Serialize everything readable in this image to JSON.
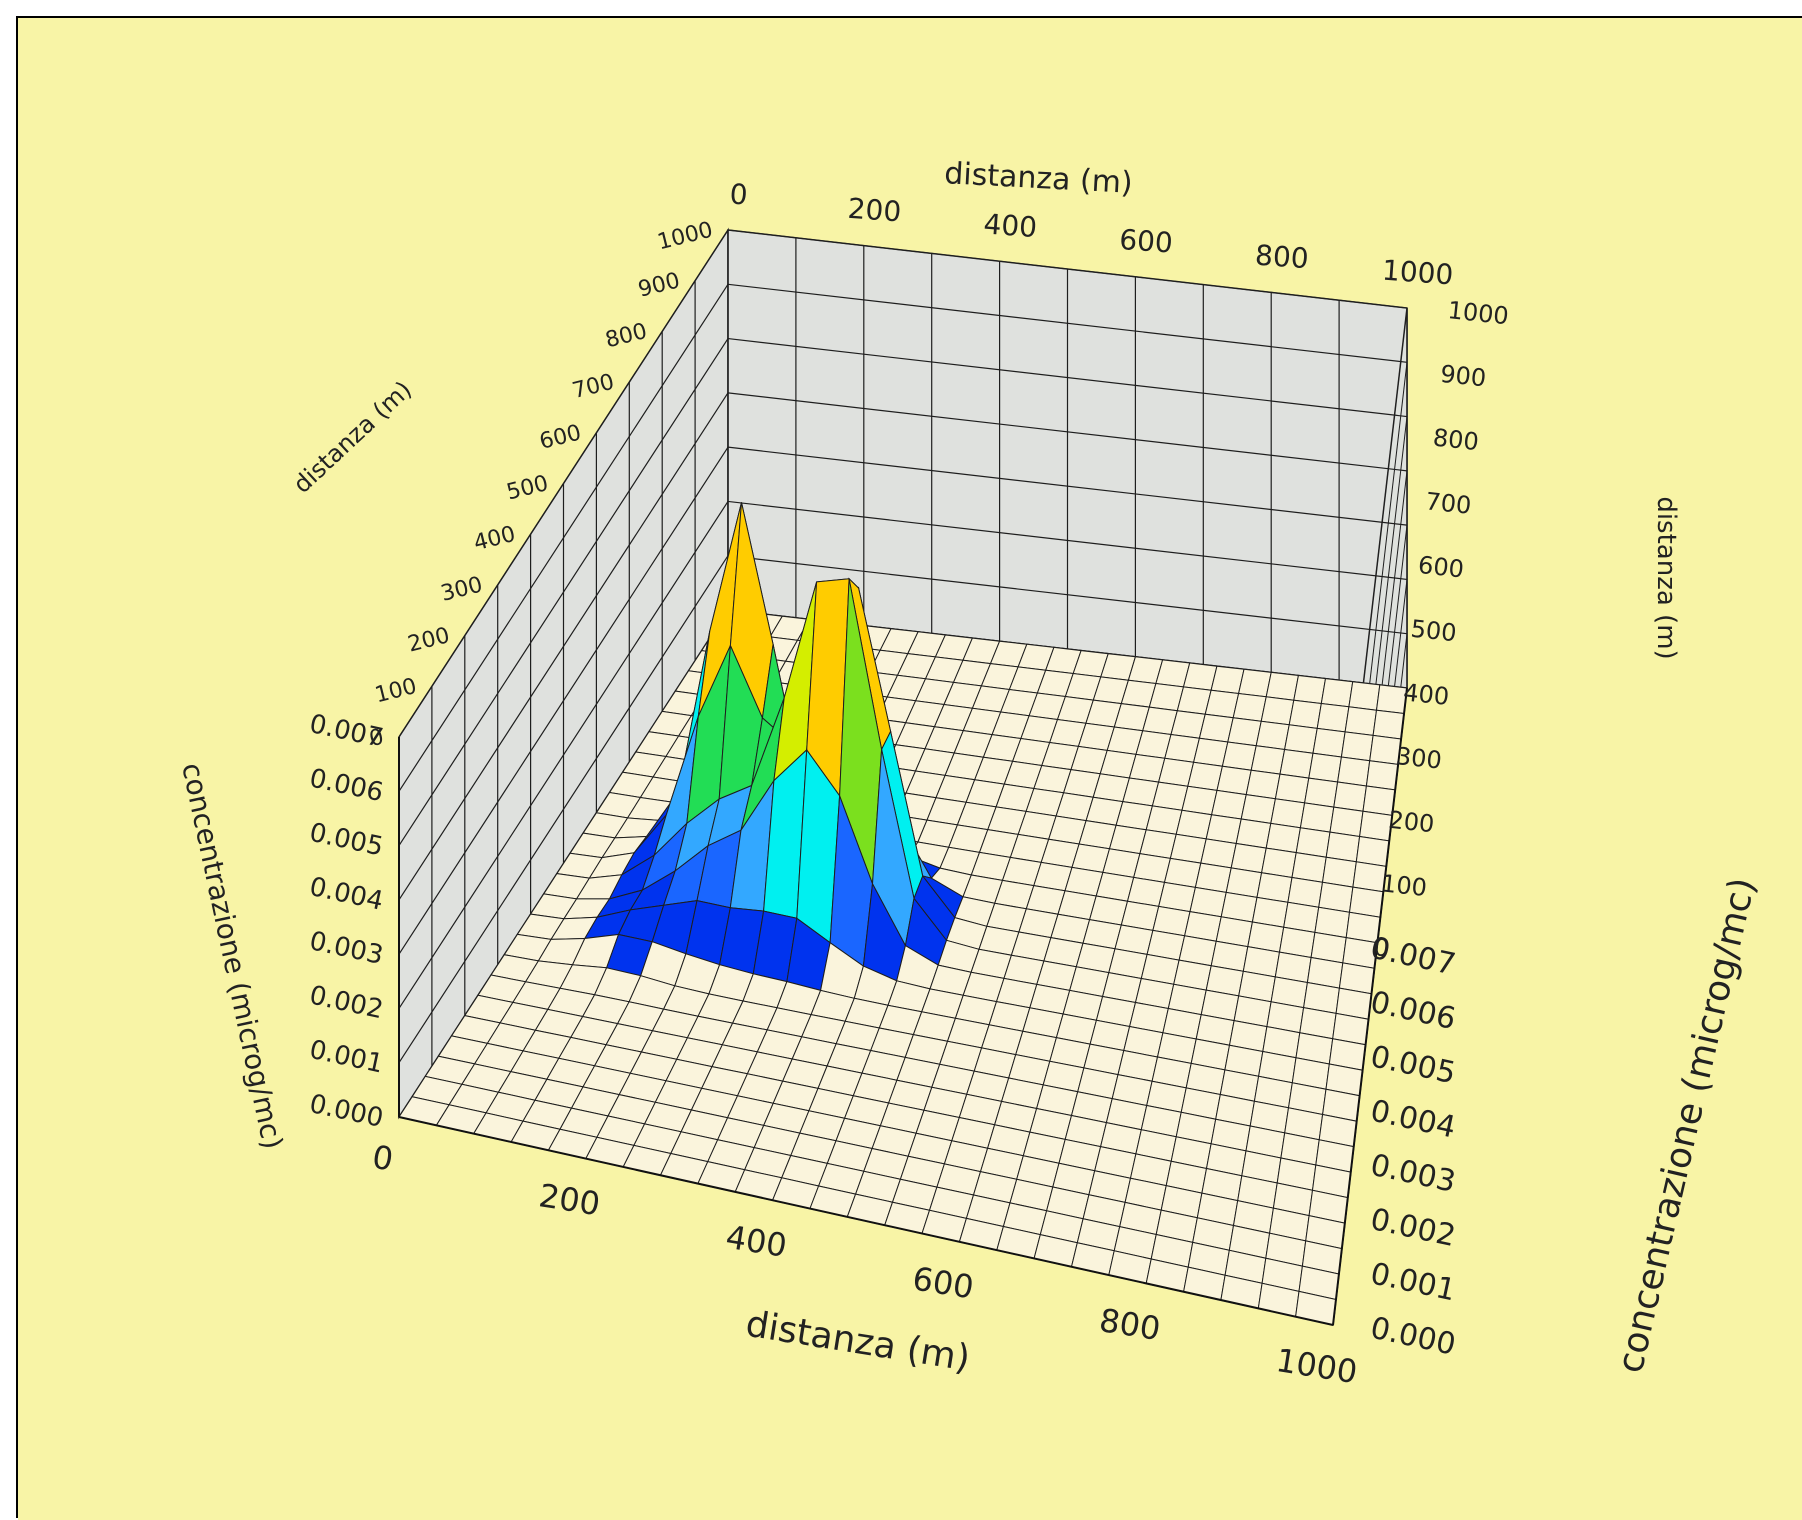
{
  "colors": {
    "background": "#F8F4A6",
    "wall": "#DFE1DE",
    "floor": "#FAF4DC",
    "grid": "#1e1e1e",
    "scale": [
      "#0033EE",
      "#1A66FF",
      "#33A8FF",
      "#00F0F0",
      "#22DD55",
      "#7BE01E",
      "#D4EE00",
      "#FFCC00",
      "#FF8A00",
      "#FF3300",
      "#CC0000"
    ]
  },
  "chart_data": {
    "type": "surface",
    "title": "",
    "xlabel": "distanza (m)",
    "ylabel": "distanza (m)",
    "zlabel": "concentrazione (microg/mc)",
    "x_axis": {
      "label": "distanza (m)",
      "ticks": [
        "0",
        "200",
        "400",
        "600",
        "800",
        "1000"
      ],
      "range": [
        0,
        1000
      ]
    },
    "y_axis": {
      "label": "distanza (m)",
      "ticks_left": [
        "1000",
        "900",
        "800",
        "700",
        "600",
        "500",
        "400",
        "300",
        "200",
        "100",
        "0"
      ],
      "ticks_right": [
        "1000",
        "900",
        "800",
        "700",
        "600",
        "500",
        "400",
        "300",
        "200",
        "100",
        "0"
      ],
      "range": [
        0,
        1000
      ]
    },
    "z_axis": {
      "label": "concentrazione (microg/mc)",
      "ticks": [
        "0.007",
        "0.006",
        "0.005",
        "0.004",
        "0.003",
        "0.002",
        "0.001",
        "0.000"
      ],
      "range": [
        0,
        0.007
      ]
    },
    "peaks": [
      {
        "x": 200,
        "y": 560,
        "z": 0.0065
      },
      {
        "x": 360,
        "y": 500,
        "z": 0.006
      },
      {
        "x": 300,
        "y": 470,
        "z": 0.0035
      },
      {
        "x": 210,
        "y": 440,
        "z": 0.0012
      },
      {
        "x": 140,
        "y": 500,
        "z": 0.0006
      },
      {
        "x": 130,
        "y": 380,
        "z": 0.0004
      }
    ]
  }
}
